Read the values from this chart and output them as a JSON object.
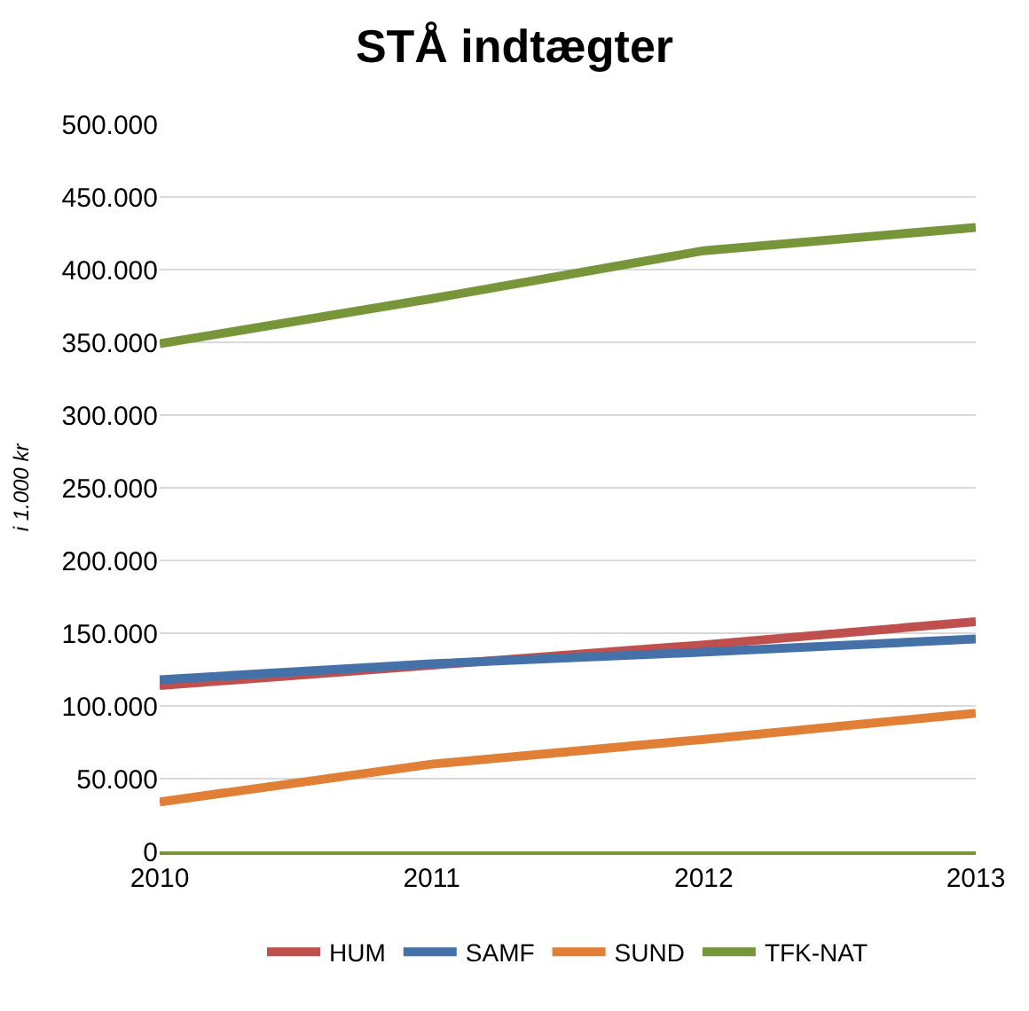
{
  "chart_data": {
    "type": "line",
    "title": "STÅ indtægter",
    "ylabel": "i 1.000 kr",
    "x": [
      2010,
      2011,
      2012,
      2013
    ],
    "xlim": [
      2010,
      2013
    ],
    "xticks": [
      2010,
      2011,
      2012,
      2013
    ],
    "ylim": [
      0,
      500000
    ],
    "yticks": [
      {
        "value": 0,
        "label": "0"
      },
      {
        "value": 50000,
        "label": "50.000"
      },
      {
        "value": 100000,
        "label": "100.000"
      },
      {
        "value": 150000,
        "label": "150.000"
      },
      {
        "value": 200000,
        "label": "200.000"
      },
      {
        "value": 250000,
        "label": "250.000"
      },
      {
        "value": 300000,
        "label": "300.000"
      },
      {
        "value": 350000,
        "label": "350.000"
      },
      {
        "value": 400000,
        "label": "400.000"
      },
      {
        "value": 450000,
        "label": "450.000"
      },
      {
        "value": 500000,
        "label": "500.000"
      }
    ],
    "series": [
      {
        "name": "HUM",
        "color": "#c0504d",
        "values": [
          114000,
          128000,
          142000,
          158000
        ]
      },
      {
        "name": "SAMF",
        "color": "#4472a8",
        "values": [
          118000,
          129000,
          137000,
          146000
        ]
      },
      {
        "name": "SUND",
        "color": "#e07f35",
        "values": [
          34000,
          60000,
          77000,
          95000
        ]
      },
      {
        "name": "TFK-NAT",
        "color": "#77963a",
        "values": [
          349000,
          380000,
          413000,
          429000
        ]
      }
    ],
    "grid": "y",
    "legend": "bottom",
    "marker": "none",
    "line_style": "solid"
  }
}
